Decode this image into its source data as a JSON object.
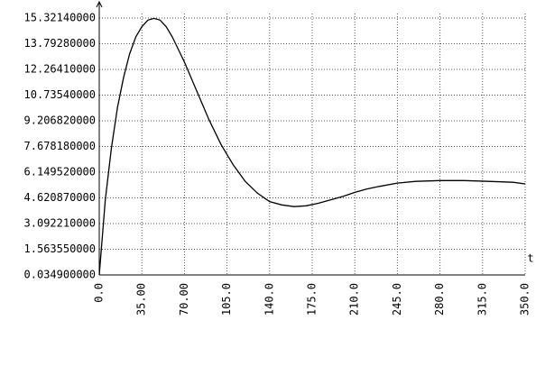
{
  "chart_data": {
    "type": "line",
    "x_label": "t",
    "x": [
      0,
      5,
      10,
      15,
      20,
      25,
      30,
      35,
      40,
      45,
      50,
      55,
      60,
      70,
      80,
      90,
      100,
      110,
      120,
      130,
      140,
      150,
      160,
      170,
      180,
      190,
      200,
      210,
      220,
      230,
      245,
      260,
      280,
      300,
      320,
      340,
      350
    ],
    "series": [
      {
        "color": "#000000",
        "values": [
          0.03,
          4.5,
          7.6,
          10.0,
          11.8,
          13.2,
          14.2,
          14.8,
          15.2,
          15.3,
          15.2,
          14.8,
          14.2,
          12.7,
          11.0,
          9.3,
          7.8,
          6.6,
          5.6,
          4.9,
          4.4,
          4.2,
          4.1,
          4.15,
          4.3,
          4.5,
          4.7,
          4.95,
          5.15,
          5.3,
          5.5,
          5.6,
          5.65,
          5.65,
          5.6,
          5.55,
          5.45
        ]
      }
    ],
    "xlim": [
      0,
      350
    ],
    "xticks": [
      {
        "value": 0,
        "label": "0.0"
      },
      {
        "value": 35,
        "label": "35.00"
      },
      {
        "value": 70,
        "label": "70.00"
      },
      {
        "value": 105,
        "label": "105.0"
      },
      {
        "value": 140,
        "label": "140.0"
      },
      {
        "value": 175,
        "label": "175.0"
      },
      {
        "value": 210,
        "label": "210.0"
      },
      {
        "value": 245,
        "label": "245.0"
      },
      {
        "value": 280,
        "label": "280.0"
      },
      {
        "value": 315,
        "label": "315.0"
      },
      {
        "value": 350,
        "label": "350.0"
      }
    ],
    "ylim": [
      0.0349,
      15.3214
    ],
    "yticks": [
      {
        "value": 0.0349,
        "label": "0.034900000"
      },
      {
        "value": 1.56355,
        "label": "1.563550000"
      },
      {
        "value": 3.09221,
        "label": "3.092210000"
      },
      {
        "value": 4.62087,
        "label": "4.620870000"
      },
      {
        "value": 6.14952,
        "label": "6.149520000"
      },
      {
        "value": 7.67818,
        "label": "7.678180000"
      },
      {
        "value": 9.20682,
        "label": "9.206820000"
      },
      {
        "value": 10.7354,
        "label": "10.73540000"
      },
      {
        "value": 12.2641,
        "label": "12.26410000"
      },
      {
        "value": 13.7928,
        "label": "13.79280000"
      },
      {
        "value": 15.3214,
        "label": "15.32140000"
      }
    ],
    "grid": true
  }
}
